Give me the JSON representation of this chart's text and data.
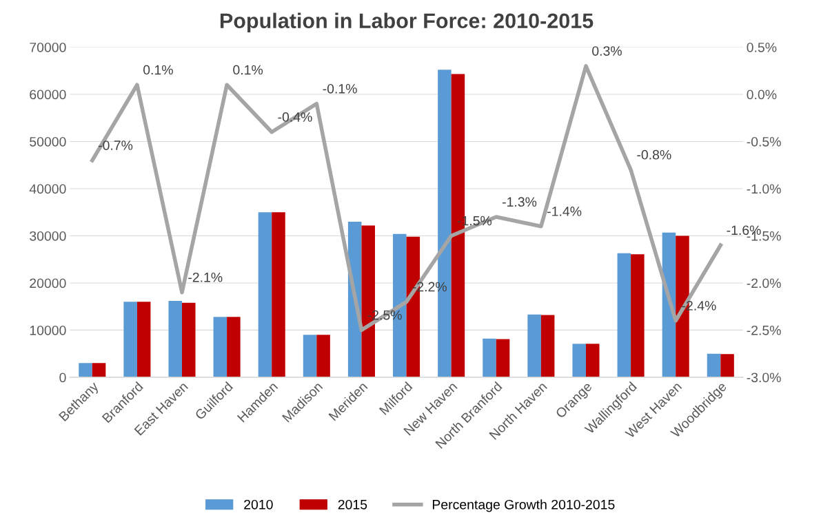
{
  "chart_data": {
    "type": "bar",
    "title": "Population in Labor Force: 2010-2015",
    "categories": [
      "Bethany",
      "Branford",
      "East Haven",
      "Guilford",
      "Hamden",
      "Madison",
      "Meriden",
      "Milford",
      "New Haven",
      "North Branford",
      "North Haven",
      "Orange",
      "Wallingford",
      "West Haven",
      "Woodbridge"
    ],
    "series": [
      {
        "name": "2010",
        "color": "#5b9bd5",
        "values": [
          3000,
          16000,
          16200,
          12800,
          35000,
          9000,
          33000,
          30400,
          65200,
          8200,
          13300,
          7100,
          26300,
          30700,
          5000
        ]
      },
      {
        "name": "2015",
        "color": "#c00000",
        "values": [
          3000,
          16000,
          15800,
          12800,
          35000,
          9000,
          32200,
          29800,
          64300,
          8100,
          13200,
          7100,
          26100,
          30000,
          4900
        ]
      },
      {
        "name": "Percentage Growth 2010-2015",
        "type": "line",
        "axis": "y2",
        "color": "#a5a5a5",
        "values": [
          -0.7,
          0.1,
          -2.1,
          0.1,
          -0.4,
          -0.1,
          -2.5,
          -2.2,
          -1.5,
          -1.3,
          -1.4,
          0.3,
          -0.8,
          -2.4,
          -1.6
        ],
        "value_labels": [
          "-0.7%",
          "0.1%",
          "-2.1%",
          "0.1%",
          "-0.4%",
          "-0.1%",
          "-2.5%",
          "-2.2%",
          "-1.5%",
          "-1.3%",
          "-1.4%",
          "0.3%",
          "-0.8%",
          "-2.4%",
          "-1.6%"
        ]
      }
    ],
    "ylim": [
      0,
      70000
    ],
    "yticks": [
      0,
      10000,
      20000,
      30000,
      40000,
      50000,
      60000,
      70000
    ],
    "y2lim": [
      -3.0,
      0.5
    ],
    "y2ticks": [
      {
        "value": -3.0,
        "label": "-3.0%"
      },
      {
        "value": -2.5,
        "label": "-2.5%"
      },
      {
        "value": -2.0,
        "label": "-2.0%"
      },
      {
        "value": -1.5,
        "label": "-1.5%"
      },
      {
        "value": -1.0,
        "label": "-1.0%"
      },
      {
        "value": -0.5,
        "label": "-0.5%"
      },
      {
        "value": 0.0,
        "label": "0.0%"
      },
      {
        "value": 0.5,
        "label": "0.5%"
      }
    ],
    "grid": "y",
    "legend": "bottom",
    "marker": "none",
    "line_style": "solid"
  }
}
